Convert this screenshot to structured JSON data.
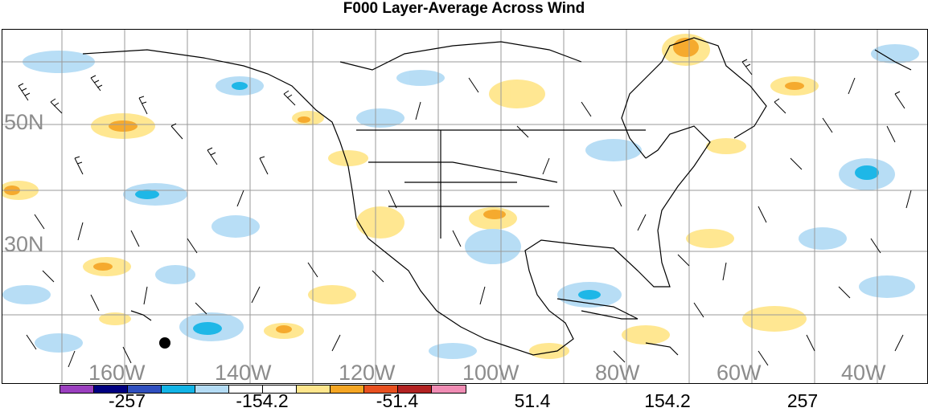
{
  "title": "F000 Layer-Average Across Wind",
  "lat_labels": [
    "50N",
    "30N"
  ],
  "lon_labels": [
    "160W",
    "140W",
    "120W",
    "100W",
    "80W",
    "60W",
    "40W"
  ],
  "colorbar": {
    "colors": [
      "#9b3fbf",
      "#000080",
      "#2f4fbf",
      "#12b4e6",
      "#b4dcf5",
      "#ffffff",
      "#ffffff",
      "#ffe68c",
      "#f5a623",
      "#e8501f",
      "#b22222",
      "#f08cb4"
    ],
    "labels": [
      "-257",
      "-154.2",
      "-51.4",
      "51.4",
      "154.2",
      "257"
    ]
  },
  "legend_colors": {
    "light_blue": "#b4dcf5",
    "blue": "#12b4e6",
    "light_yellow": "#ffe68c",
    "orange": "#f5a623"
  },
  "icons": [
    "wind-barb-icon",
    "station-marker-icon"
  ]
}
